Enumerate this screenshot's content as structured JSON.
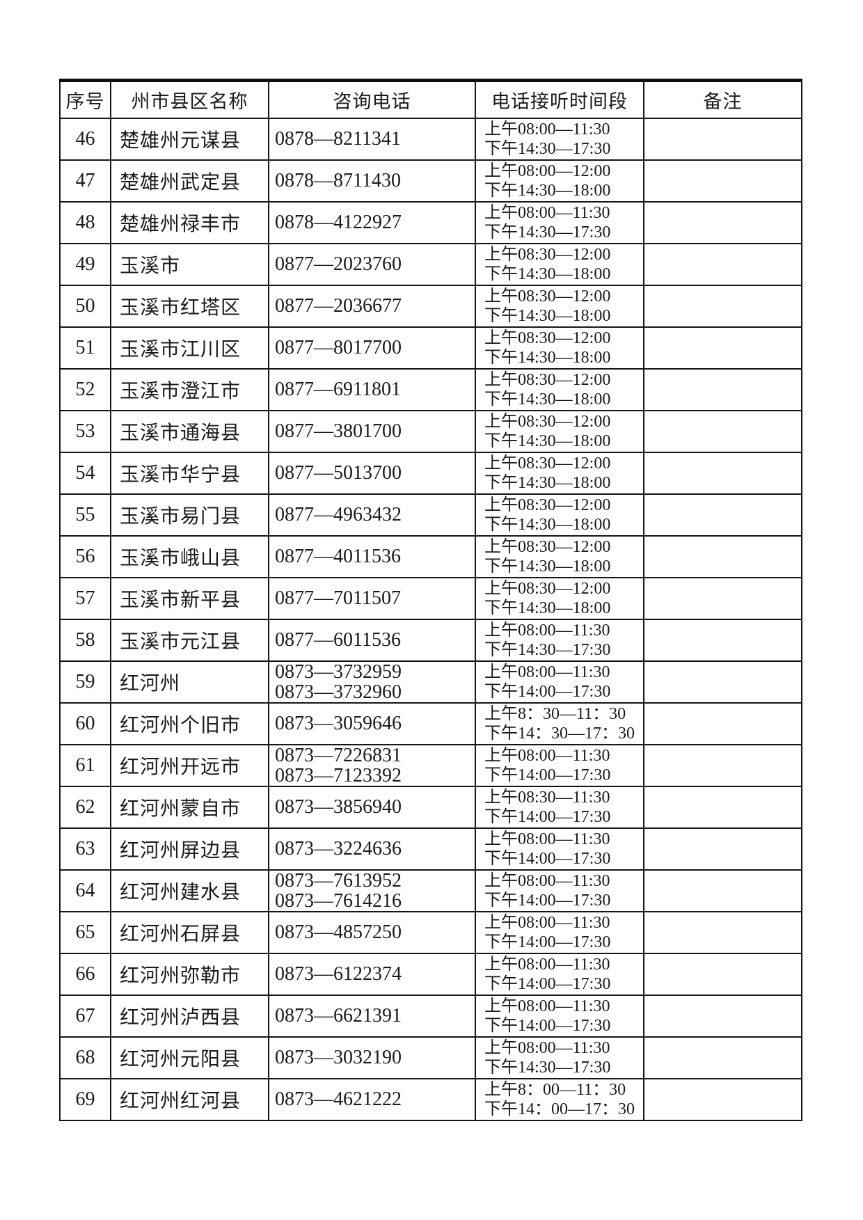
{
  "colors": {
    "background": "#ffffff",
    "text": "#1a1a1a",
    "table_border": "#151515"
  },
  "table": {
    "headers": [
      "序号",
      "州市县区名称",
      "咨询电话",
      "电话接听时间段",
      "备注"
    ],
    "rows": [
      {
        "no": "46",
        "name": "楚雄州元谋县",
        "phones": [
          "0878—8211341"
        ],
        "times": [
          "上午08:00—11:30",
          "下午14:30—17:30"
        ],
        "remark": ""
      },
      {
        "no": "47",
        "name": "楚雄州武定县",
        "phones": [
          "0878—8711430"
        ],
        "times": [
          "上午08:00—12:00",
          "下午14:30—18:00"
        ],
        "remark": ""
      },
      {
        "no": "48",
        "name": "楚雄州禄丰市",
        "phones": [
          "0878—4122927"
        ],
        "times": [
          "上午08:00—11:30",
          "下午14:30—17:30"
        ],
        "remark": ""
      },
      {
        "no": "49",
        "name": "玉溪市",
        "phones": [
          "0877—2023760"
        ],
        "times": [
          "上午08:30—12:00",
          "下午14:30—18:00"
        ],
        "remark": ""
      },
      {
        "no": "50",
        "name": "玉溪市红塔区",
        "phones": [
          "0877—2036677"
        ],
        "times": [
          "上午08:30—12:00",
          "下午14:30—18:00"
        ],
        "remark": ""
      },
      {
        "no": "51",
        "name": "玉溪市江川区",
        "phones": [
          "0877—8017700"
        ],
        "times": [
          "上午08:30—12:00",
          "下午14:30—18:00"
        ],
        "remark": ""
      },
      {
        "no": "52",
        "name": "玉溪市澄江市",
        "phones": [
          "0877—6911801"
        ],
        "times": [
          "上午08:30—12:00",
          "下午14:30—18:00"
        ],
        "remark": ""
      },
      {
        "no": "53",
        "name": "玉溪市通海县",
        "phones": [
          "0877—3801700"
        ],
        "times": [
          "上午08:30—12:00",
          "下午14:30—18:00"
        ],
        "remark": ""
      },
      {
        "no": "54",
        "name": "玉溪市华宁县",
        "phones": [
          "0877—5013700"
        ],
        "times": [
          "上午08:30—12:00",
          "下午14:30—18:00"
        ],
        "remark": ""
      },
      {
        "no": "55",
        "name": "玉溪市易门县",
        "phones": [
          "0877—4963432"
        ],
        "times": [
          "上午08:30—12:00",
          "下午14:30—18:00"
        ],
        "remark": ""
      },
      {
        "no": "56",
        "name": "玉溪市峨山县",
        "phones": [
          "0877—4011536"
        ],
        "times": [
          "上午08:30—12:00",
          "下午14:30—18:00"
        ],
        "remark": ""
      },
      {
        "no": "57",
        "name": "玉溪市新平县",
        "phones": [
          "0877—7011507"
        ],
        "times": [
          "上午08:30—12:00",
          "下午14:30—18:00"
        ],
        "remark": ""
      },
      {
        "no": "58",
        "name": "玉溪市元江县",
        "phones": [
          "0877—6011536"
        ],
        "times": [
          "上午08:00—11:30",
          "下午14:30—17:30"
        ],
        "remark": ""
      },
      {
        "no": "59",
        "name": "红河州",
        "phones": [
          "0873—3732959",
          "0873—3732960"
        ],
        "times": [
          "上午08:00—11:30",
          "下午14:00—17:30"
        ],
        "remark": ""
      },
      {
        "no": "60",
        "name": "红河州个旧市",
        "phones": [
          "0873—3059646"
        ],
        "times": [
          "上午8：30—11：30",
          "下午14：30—17：30"
        ],
        "remark": ""
      },
      {
        "no": "61",
        "name": "红河州开远市",
        "phones": [
          "0873—7226831",
          "0873—7123392"
        ],
        "times": [
          "上午08:00—11:30",
          "下午14:00—17:30"
        ],
        "remark": ""
      },
      {
        "no": "62",
        "name": "红河州蒙自市",
        "phones": [
          "0873—3856940"
        ],
        "times": [
          "上午08:30—11:30",
          "下午14:00—17:30"
        ],
        "remark": ""
      },
      {
        "no": "63",
        "name": "红河州屏边县",
        "phones": [
          "0873—3224636"
        ],
        "times": [
          "上午08:00—11:30",
          "下午14:00—17:30"
        ],
        "remark": ""
      },
      {
        "no": "64",
        "name": "红河州建水县",
        "phones": [
          "0873—7613952",
          "0873—7614216"
        ],
        "times": [
          "上午08:00—11:30",
          "下午14:00—17:30"
        ],
        "remark": ""
      },
      {
        "no": "65",
        "name": "红河州石屏县",
        "phones": [
          "0873—4857250"
        ],
        "times": [
          "上午08:00—11:30",
          "下午14:00—17:30"
        ],
        "remark": ""
      },
      {
        "no": "66",
        "name": "红河州弥勒市",
        "phones": [
          "0873—6122374"
        ],
        "times": [
          "上午08:00—11:30",
          "下午14:00—17:30"
        ],
        "remark": ""
      },
      {
        "no": "67",
        "name": "红河州泸西县",
        "phones": [
          "0873—6621391"
        ],
        "times": [
          "上午08:00—11:30",
          "下午14:00—17:30"
        ],
        "remark": ""
      },
      {
        "no": "68",
        "name": "红河州元阳县",
        "phones": [
          "0873—3032190"
        ],
        "times": [
          "上午08:00—11:30",
          "下午14:30—17:30"
        ],
        "remark": ""
      },
      {
        "no": "69",
        "name": "红河州红河县",
        "phones": [
          "0873—4621222"
        ],
        "times": [
          "上午8：00—11：30",
          "下午14：00—17：30"
        ],
        "remark": ""
      }
    ]
  }
}
